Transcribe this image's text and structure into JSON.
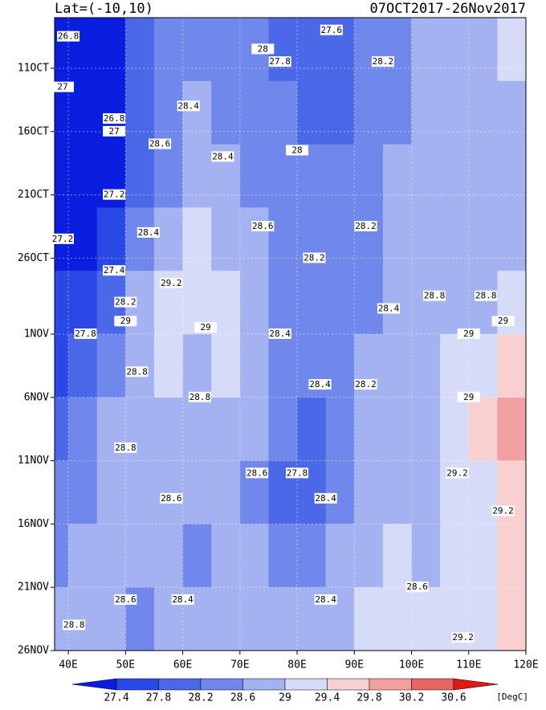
{
  "chart_data": {
    "type": "hovmoller",
    "title": "Lat=(-10,10)",
    "subtitle": "07OCT2017-26Nov2017",
    "units": "[DegC]",
    "xlim": [
      37.6,
      120
    ],
    "ylim": [
      0,
      50
    ],
    "xticks": [
      {
        "value": 40,
        "label": "40E"
      },
      {
        "value": 50,
        "label": "50E"
      },
      {
        "value": 60,
        "label": "60E"
      },
      {
        "value": 70,
        "label": "70E"
      },
      {
        "value": 80,
        "label": "80E"
      },
      {
        "value": 90,
        "label": "90E"
      },
      {
        "value": 100,
        "label": "100E"
      },
      {
        "value": 110,
        "label": "110E"
      },
      {
        "value": 120,
        "label": "120E"
      }
    ],
    "yticks": [
      {
        "value": 4,
        "label": "11OCT"
      },
      {
        "value": 9,
        "label": "16OCT"
      },
      {
        "value": 14,
        "label": "21OCT"
      },
      {
        "value": 19,
        "label": "26OCT"
      },
      {
        "value": 25,
        "label": "1NOV"
      },
      {
        "value": 30,
        "label": "6NOV"
      },
      {
        "value": 35,
        "label": "11NOV"
      },
      {
        "value": 40,
        "label": "16NOV"
      },
      {
        "value": 45,
        "label": "21NOV"
      },
      {
        "value": 50,
        "label": "26NOV"
      }
    ],
    "lon_edges": [
      37.6,
      40,
      45,
      50,
      55,
      60,
      65,
      70,
      75,
      80,
      85,
      90,
      95,
      100,
      105,
      110,
      115,
      120
    ],
    "day_edges": [
      0,
      5,
      10,
      15,
      20,
      25,
      30,
      35,
      40,
      45,
      50
    ],
    "levels": [
      27.4,
      27.8,
      28.2,
      28.6,
      29,
      29.4,
      29.8,
      30.2,
      30.6
    ],
    "colors": [
      "#0a1ee0",
      "#2a48e6",
      "#4a68e8",
      "#7088ec",
      "#a4b2f2",
      "#d6dcf8",
      "#f8d0d0",
      "#f2a0a0",
      "#ea6464",
      "#e01818"
    ],
    "values": [
      [
        26.9,
        27.0,
        27.3,
        27.9,
        28.3,
        28.4,
        28.5,
        28.4,
        28.1,
        27.9,
        28.0,
        28.2,
        28.4,
        28.7,
        28.8,
        28.9,
        29.0
      ],
      [
        27.0,
        27.0,
        27.2,
        27.8,
        28.3,
        28.6,
        28.5,
        28.4,
        28.2,
        28.0,
        28.1,
        28.3,
        28.5,
        28.7,
        28.9,
        28.8,
        28.9
      ],
      [
        27.1,
        27.1,
        27.3,
        27.9,
        28.5,
        28.8,
        28.7,
        28.5,
        28.4,
        28.2,
        28.3,
        28.4,
        28.6,
        28.6,
        28.8,
        28.8,
        28.9
      ],
      [
        27.2,
        27.3,
        27.6,
        28.2,
        28.8,
        29.0,
        28.9,
        28.6,
        28.5,
        28.3,
        28.4,
        28.5,
        28.6,
        28.7,
        28.7,
        28.8,
        28.9
      ],
      [
        27.4,
        27.5,
        28.0,
        28.6,
        29.1,
        29.1,
        29.0,
        28.7,
        28.4,
        28.3,
        28.4,
        28.5,
        28.6,
        28.8,
        28.9,
        28.9,
        29.1
      ],
      [
        27.6,
        27.8,
        28.4,
        28.8,
        29.1,
        28.9,
        29.0,
        28.9,
        28.4,
        28.2,
        28.5,
        28.6,
        28.7,
        28.9,
        29.0,
        29.3,
        29.6
      ],
      [
        27.8,
        28.2,
        28.6,
        28.9,
        28.9,
        28.8,
        28.7,
        28.6,
        28.2,
        28.0,
        28.4,
        28.7,
        28.6,
        28.7,
        29.0,
        29.4,
        29.8
      ],
      [
        28.2,
        28.5,
        28.7,
        28.9,
        28.7,
        28.6,
        28.6,
        28.5,
        28.0,
        27.8,
        28.5,
        28.8,
        28.7,
        28.7,
        29.1,
        29.3,
        29.6
      ],
      [
        28.5,
        28.6,
        28.8,
        28.7,
        28.6,
        28.5,
        28.6,
        28.6,
        28.2,
        28.3,
        28.7,
        28.9,
        29.0,
        28.9,
        29.2,
        29.3,
        29.5
      ],
      [
        28.6,
        28.7,
        28.6,
        28.5,
        28.6,
        28.7,
        28.7,
        28.7,
        28.6,
        28.6,
        28.8,
        29.0,
        29.1,
        29.0,
        29.2,
        29.2,
        29.4
      ]
    ],
    "contour_labels": [
      {
        "lon": 40,
        "day": 1.5,
        "value": 26.8
      },
      {
        "lon": 39,
        "day": 5.5,
        "value": 27
      },
      {
        "lon": 48,
        "day": 8,
        "value": 26.8
      },
      {
        "lon": 48,
        "day": 9,
        "value": 27
      },
      {
        "lon": 48,
        "day": 14,
        "value": 27.2
      },
      {
        "lon": 39,
        "day": 17.5,
        "value": 27.2
      },
      {
        "lon": 48,
        "day": 20,
        "value": 27.4
      },
      {
        "lon": 50,
        "day": 22.5,
        "value": 28.2
      },
      {
        "lon": 54,
        "day": 17,
        "value": 28.4
      },
      {
        "lon": 58,
        "day": 21,
        "value": 29.2
      },
      {
        "lon": 56,
        "day": 10,
        "value": 28.6
      },
      {
        "lon": 61,
        "day": 7,
        "value": 28.4
      },
      {
        "lon": 67,
        "day": 11,
        "value": 28.4
      },
      {
        "lon": 74,
        "day": 2.5,
        "value": 28
      },
      {
        "lon": 77,
        "day": 3.5,
        "value": 27.8
      },
      {
        "lon": 86,
        "day": 1,
        "value": 27.6
      },
      {
        "lon": 95,
        "day": 3.5,
        "value": 28.2
      },
      {
        "lon": 80,
        "day": 10.5,
        "value": 28
      },
      {
        "lon": 92,
        "day": 16.5,
        "value": 28.2
      },
      {
        "lon": 83,
        "day": 19,
        "value": 28.2
      },
      {
        "lon": 74,
        "day": 16.5,
        "value": 28.6
      },
      {
        "lon": 77,
        "day": 25,
        "value": 28.4
      },
      {
        "lon": 64,
        "day": 24.5,
        "value": 29
      },
      {
        "lon": 50,
        "day": 24,
        "value": 29
      },
      {
        "lon": 43,
        "day": 25,
        "value": 27.8
      },
      {
        "lon": 52,
        "day": 28,
        "value": 28.8
      },
      {
        "lon": 63,
        "day": 30,
        "value": 28.8
      },
      {
        "lon": 84,
        "day": 29,
        "value": 28.4
      },
      {
        "lon": 92,
        "day": 29,
        "value": 28.2
      },
      {
        "lon": 96,
        "day": 23,
        "value": 28.4
      },
      {
        "lon": 104,
        "day": 22,
        "value": 28.8
      },
      {
        "lon": 113,
        "day": 22,
        "value": 28.8
      },
      {
        "lon": 110,
        "day": 25,
        "value": 29
      },
      {
        "lon": 116,
        "day": 24,
        "value": 29
      },
      {
        "lon": 110,
        "day": 30,
        "value": 29
      },
      {
        "lon": 80,
        "day": 36,
        "value": 27.8
      },
      {
        "lon": 85,
        "day": 38,
        "value": 28.4
      },
      {
        "lon": 50,
        "day": 34,
        "value": 28.8
      },
      {
        "lon": 58,
        "day": 38,
        "value": 28.6
      },
      {
        "lon": 73,
        "day": 36,
        "value": 28.6
      },
      {
        "lon": 108,
        "day": 36,
        "value": 29.2
      },
      {
        "lon": 116,
        "day": 39,
        "value": 29.2
      },
      {
        "lon": 85,
        "day": 46,
        "value": 28.4
      },
      {
        "lon": 50,
        "day": 46,
        "value": 28.6
      },
      {
        "lon": 60,
        "day": 46,
        "value": 28.4
      },
      {
        "lon": 41,
        "day": 48,
        "value": 28.8
      },
      {
        "lon": 101,
        "day": 45,
        "value": 28.6
      },
      {
        "lon": 109,
        "day": 49,
        "value": 29.2
      }
    ]
  }
}
